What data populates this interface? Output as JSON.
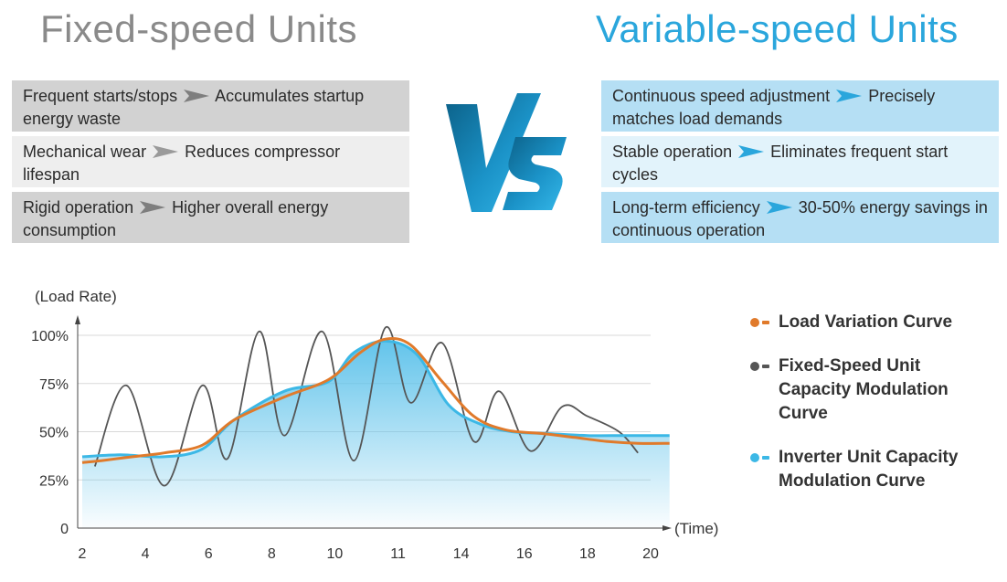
{
  "header": {
    "left_title": "Fixed-speed Units",
    "right_title": "Variable-speed Units"
  },
  "colors": {
    "grey_text": "#8a8a8a",
    "blue_text": "#2aa6dc",
    "orange": "#e07a2b",
    "dark_grey": "#555555",
    "light_blue": "#3cb8e6",
    "fill_blue": "#5bc1ea"
  },
  "fixed_points": [
    {
      "cause": "Frequent starts/stops",
      "effect": "Accumulates startup energy waste"
    },
    {
      "cause": "Mechanical wear",
      "effect": "Reduces compressor lifespan"
    },
    {
      "cause": "Rigid operation",
      "effect": "Higher overall energy consumption"
    }
  ],
  "variable_points": [
    {
      "cause": "Continuous speed adjustment",
      "effect": "Precisely matches load demands"
    },
    {
      "cause": "Stable operation",
      "effect": "Eliminates frequent start cycles"
    },
    {
      "cause": "Long-term efficiency",
      "effect": "30-50% energy savings in continuous operation"
    }
  ],
  "vs_icon": "vs-logo",
  "chart_data": {
    "type": "line",
    "ylabel": "(Load Rate)",
    "xlabel": "(Time)",
    "ylim": [
      0,
      100
    ],
    "y_ticks": [
      "100%",
      "75%",
      "50%",
      "25%",
      "0"
    ],
    "y_tick_values": [
      100,
      75,
      50,
      25,
      0
    ],
    "x_ticks": [
      "2",
      "4",
      "6",
      "8",
      "10",
      "11",
      "14",
      "16",
      "18",
      "20"
    ],
    "grid": true,
    "legend_position": "right",
    "series": [
      {
        "name": "Load Variation Curve",
        "color": "#e07a2b",
        "x": [
          0,
          0.3,
          0.8,
          1.3,
          1.9,
          2.4,
          3.2,
          3.9,
          4.4,
          4.8,
          5.2,
          5.7,
          6.2,
          6.7,
          7.3,
          7.8,
          8.3,
          8.8,
          9.3
        ],
        "y": [
          34,
          35,
          37,
          39,
          43,
          56,
          68,
          77,
          91,
          98,
          95,
          76,
          58,
          51,
          49,
          47,
          45,
          44,
          44
        ]
      },
      {
        "name": "Fixed-Speed Unit Capacity Modulation Curve",
        "color": "#555555",
        "x": [
          0.2,
          0.7,
          1.3,
          1.9,
          2.3,
          2.8,
          3.2,
          3.8,
          4.3,
          4.8,
          5.2,
          5.7,
          6.2,
          6.6,
          7.1,
          7.6,
          8.0,
          8.5,
          8.8
        ],
        "y": [
          32,
          74,
          22,
          74,
          36,
          102,
          48,
          102,
          35,
          104,
          65,
          96,
          45,
          71,
          40,
          63,
          58,
          50,
          39
        ]
      },
      {
        "name": "Inverter Unit Capacity Modulation Curve",
        "color": "#3cb8e6",
        "x": [
          0,
          0.6,
          1.3,
          1.9,
          2.4,
          3.2,
          3.9,
          4.3,
          4.8,
          5.3,
          5.8,
          6.3,
          6.8,
          7.4,
          8.0,
          8.6,
          9.3
        ],
        "y": [
          37,
          38,
          37,
          41,
          56,
          71,
          76,
          91,
          97,
          90,
          64,
          54,
          50,
          49,
          48,
          48,
          48
        ]
      }
    ]
  }
}
